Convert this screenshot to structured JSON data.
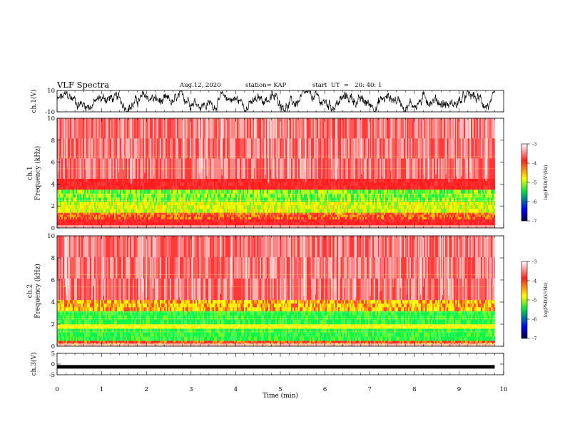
{
  "header": {
    "title": "VLF Spectra",
    "date": "Aug.12, 2020",
    "station": "station= KAP",
    "start": "start  UT  =   20: 40: 1"
  },
  "colorbar": {
    "label": "log(PSD)(V²/Hz)",
    "ticks": [
      "-3",
      "-4",
      "-5",
      "-6",
      "-7"
    ],
    "colors": [
      "#ffffff",
      "#ff2020",
      "#ffff00",
      "#00e040",
      "#0000ff",
      "#000040"
    ]
  },
  "chart_data": [
    {
      "type": "line",
      "ylabel": "ch.1(V)",
      "ylim": [
        -10,
        10
      ],
      "yticks": [
        "10",
        "-10"
      ],
      "series": [
        {
          "values_summary": "noisy oscillating waveform spanning approximately -9 to +9 V"
        }
      ]
    },
    {
      "type": "heatmap",
      "ylabel": "ch.1\nFrequency  (kHz)",
      "ylim": [
        0,
        10
      ],
      "yticks": [
        "0",
        "2",
        "4",
        "6",
        "8",
        "10"
      ],
      "bands": [
        {
          "from": 0.0,
          "to": 0.8,
          "level": "red"
        },
        {
          "from": 0.8,
          "to": 1.4,
          "level": "red-yellow"
        },
        {
          "from": 1.4,
          "to": 2.4,
          "level": "yellow-green"
        },
        {
          "from": 2.4,
          "to": 3.5,
          "level": "green-yellow"
        },
        {
          "from": 3.5,
          "to": 4.5,
          "level": "red"
        },
        {
          "from": 4.5,
          "to": 10.0,
          "level": "red-white speckle"
        }
      ]
    },
    {
      "type": "heatmap",
      "ylabel": "ch.2\nFrequency  (kHz)",
      "ylim": [
        0,
        10
      ],
      "yticks": [
        "0",
        "2",
        "4",
        "6",
        "8",
        "10"
      ],
      "bands": [
        {
          "from": 0.0,
          "to": 0.5,
          "level": "red-yellow"
        },
        {
          "from": 0.5,
          "to": 1.6,
          "level": "green"
        },
        {
          "from": 1.6,
          "to": 2.0,
          "level": "yellow"
        },
        {
          "from": 2.0,
          "to": 3.2,
          "level": "green"
        },
        {
          "from": 3.2,
          "to": 4.2,
          "level": "yellow-red"
        },
        {
          "from": 4.2,
          "to": 10.0,
          "level": "red-white speckle"
        }
      ]
    },
    {
      "type": "line",
      "ylabel": "ch.3(V)",
      "ylim": [
        -5,
        5
      ],
      "yticks": [
        "5",
        "0",
        "-5"
      ],
      "series": [
        {
          "values_summary": "flat thick trace near -1.3 V"
        }
      ]
    }
  ],
  "xaxis": {
    "label": "Time  (min)",
    "xlim": [
      0,
      10
    ],
    "ticks": [
      "0",
      "1",
      "2",
      "3",
      "4",
      "5",
      "6",
      "7",
      "8",
      "9",
      "10"
    ],
    "data_end": 9.8
  }
}
